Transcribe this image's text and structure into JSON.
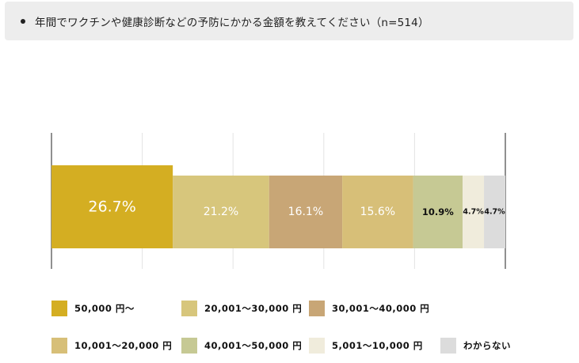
{
  "question": {
    "text": "年間でワクチンや健康診断などの予防にかかる金額を教えてください（n=514）"
  },
  "chart_data": {
    "type": "bar",
    "orientation": "horizontal",
    "stacked": true,
    "title": "年間でワクチンや健康診断などの予防にかかる金額を教えてください（n=514）",
    "xlim": [
      0,
      100
    ],
    "unit": "%",
    "grid": true,
    "legend_position": "bottom",
    "series": [
      {
        "name": "50,000 円～",
        "value": 26.7,
        "label": "26.7%",
        "color": "#d4ae22"
      },
      {
        "name": "20,001～30,000 円",
        "value": 21.2,
        "label": "21.2%",
        "color": "#d7c67c"
      },
      {
        "name": "30,001～40,000 円",
        "value": 16.1,
        "label": "16.1%",
        "color": "#c8a676"
      },
      {
        "name": "10,001～20,000 円",
        "value": 15.6,
        "label": "15.6%",
        "color": "#d7bf78"
      },
      {
        "name": "40,001～50,000 円",
        "value": 10.9,
        "label": "10.9%",
        "color": "#c6c994"
      },
      {
        "name": "5,001～10,000 円",
        "value": 4.7,
        "label": "4.7%",
        "color": "#f0ecdc"
      },
      {
        "name": "わからない",
        "value": 4.7,
        "label": "4.7%",
        "color": "#dcdcdc"
      }
    ]
  }
}
